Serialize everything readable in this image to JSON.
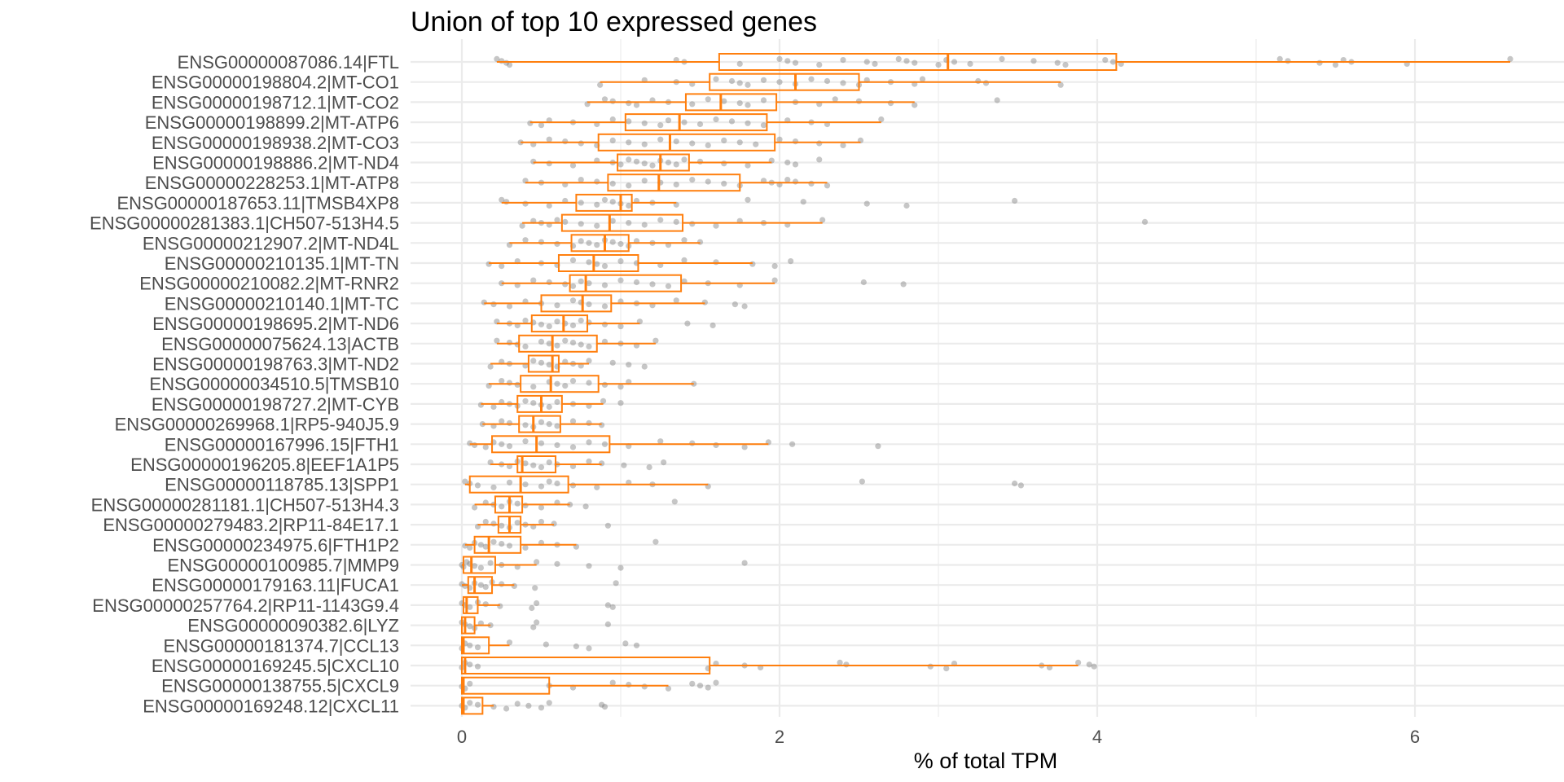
{
  "chart_data": {
    "type": "boxplot",
    "orientation": "horizontal",
    "title": "Union of top 10 expressed genes",
    "xlabel": "% of total TPM",
    "ylabel": "",
    "xlim": [
      -0.3,
      6.9
    ],
    "x_ticks": [
      0,
      2,
      4,
      6
    ],
    "grid": true,
    "legend": "none",
    "colors": {
      "box": "#ff7f0e",
      "points": "#808080",
      "grid": "#ebebeb"
    },
    "genes": [
      {
        "label": "ENSG00000087086.14|FTL",
        "whisker_low": 0.22,
        "q1": 1.62,
        "median": 3.06,
        "q3": 4.12,
        "whisker_high": 6.6,
        "points": [
          0.22,
          0.25,
          0.28,
          0.3,
          1.35,
          1.4,
          1.75,
          2.0,
          2.05,
          2.1,
          2.25,
          2.4,
          2.55,
          2.6,
          2.75,
          2.8,
          2.85,
          3.0,
          3.05,
          3.1,
          3.2,
          3.4,
          3.6,
          3.75,
          3.8,
          4.05,
          4.1,
          4.15,
          5.15,
          5.2,
          5.4,
          5.5,
          5.55,
          5.6,
          5.95,
          6.6
        ]
      },
      {
        "label": "ENSG00000198804.2|MT-CO1",
        "whisker_low": 0.87,
        "q1": 1.56,
        "median": 2.1,
        "q3": 2.5,
        "whisker_high": 3.77,
        "points": [
          0.87,
          1.15,
          1.35,
          1.45,
          1.6,
          1.7,
          1.75,
          1.8,
          1.9,
          2.0,
          2.1,
          2.2,
          2.3,
          2.4,
          2.5,
          2.55,
          2.7,
          2.85,
          2.9,
          3.25,
          3.3,
          3.77
        ]
      },
      {
        "label": "ENSG00000198712.1|MT-CO2",
        "whisker_low": 0.79,
        "q1": 1.41,
        "median": 1.63,
        "q3": 1.98,
        "whisker_high": 2.85,
        "points": [
          0.79,
          0.9,
          0.95,
          1.05,
          1.1,
          1.2,
          1.3,
          1.45,
          1.55,
          1.65,
          1.75,
          1.8,
          1.9,
          2.1,
          2.25,
          2.35,
          2.5,
          2.7,
          2.85,
          3.37
        ]
      },
      {
        "label": "ENSG00000198899.2|MT-ATP6",
        "whisker_low": 0.43,
        "q1": 1.03,
        "median": 1.37,
        "q3": 1.92,
        "whisker_high": 2.64,
        "points": [
          0.43,
          0.5,
          0.55,
          0.7,
          0.85,
          0.95,
          1.05,
          1.15,
          1.25,
          1.3,
          1.4,
          1.5,
          1.6,
          1.7,
          1.8,
          1.9,
          2.05,
          2.2,
          2.3,
          2.64
        ]
      },
      {
        "label": "ENSG00000198938.2|MT-CO3",
        "whisker_low": 0.37,
        "q1": 0.86,
        "median": 1.31,
        "q3": 1.97,
        "whisker_high": 2.51,
        "points": [
          0.37,
          0.45,
          0.55,
          0.65,
          0.75,
          0.85,
          0.95,
          1.05,
          1.15,
          1.25,
          1.35,
          1.45,
          1.55,
          1.65,
          1.75,
          1.85,
          2.0,
          2.1,
          2.25,
          2.4,
          2.51
        ]
      },
      {
        "label": "ENSG00000198886.2|MT-ND4",
        "whisker_low": 0.45,
        "q1": 0.98,
        "median": 1.25,
        "q3": 1.43,
        "whisker_high": 1.95,
        "points": [
          0.45,
          0.55,
          0.7,
          0.85,
          0.95,
          1.0,
          1.05,
          1.1,
          1.15,
          1.2,
          1.25,
          1.3,
          1.35,
          1.4,
          1.5,
          1.65,
          1.8,
          1.95,
          2.05,
          2.1,
          2.25
        ]
      },
      {
        "label": "ENSG00000228253.1|MT-ATP8",
        "whisker_low": 0.4,
        "q1": 0.92,
        "median": 1.24,
        "q3": 1.75,
        "whisker_high": 2.3,
        "points": [
          0.4,
          0.5,
          0.65,
          0.75,
          0.85,
          0.95,
          1.05,
          1.15,
          1.25,
          1.35,
          1.45,
          1.55,
          1.65,
          1.75,
          1.9,
          1.95,
          2.0,
          2.05,
          2.1,
          2.2,
          2.3
        ]
      },
      {
        "label": "ENSG00000187653.11|TMSB4XP8",
        "whisker_low": 0.25,
        "q1": 0.72,
        "median": 1.0,
        "q3": 1.07,
        "whisker_high": 1.35,
        "points": [
          0.25,
          0.28,
          0.4,
          0.55,
          0.65,
          0.75,
          0.85,
          0.9,
          0.95,
          1.0,
          1.05,
          1.1,
          1.2,
          1.35,
          1.8,
          2.15,
          2.55,
          2.8,
          3.48
        ]
      },
      {
        "label": "ENSG00000281383.1|CH507-513H4.5",
        "whisker_low": 0.38,
        "q1": 0.63,
        "median": 0.93,
        "q3": 1.39,
        "whisker_high": 2.27,
        "points": [
          0.38,
          0.45,
          0.5,
          0.55,
          0.6,
          0.65,
          0.75,
          0.85,
          0.95,
          1.05,
          1.15,
          1.25,
          1.35,
          1.45,
          1.6,
          1.75,
          1.9,
          2.05,
          2.27,
          4.3
        ]
      },
      {
        "label": "ENSG00000212907.2|MT-ND4L",
        "whisker_low": 0.3,
        "q1": 0.69,
        "median": 0.9,
        "q3": 1.05,
        "whisker_high": 1.5,
        "points": [
          0.3,
          0.4,
          0.5,
          0.6,
          0.7,
          0.75,
          0.8,
          0.85,
          0.9,
          0.95,
          1.0,
          1.05,
          1.1,
          1.2,
          1.3,
          1.4,
          1.5
        ]
      },
      {
        "label": "ENSG00000210135.1|MT-TN",
        "whisker_low": 0.17,
        "q1": 0.61,
        "median": 0.83,
        "q3": 1.11,
        "whisker_high": 1.83,
        "points": [
          0.17,
          0.25,
          0.35,
          0.5,
          0.6,
          0.7,
          0.8,
          0.85,
          0.9,
          1.0,
          1.1,
          1.25,
          1.4,
          1.6,
          1.83,
          1.97,
          2.07
        ]
      },
      {
        "label": "ENSG00000210082.2|MT-RNR2",
        "whisker_low": 0.25,
        "q1": 0.68,
        "median": 0.78,
        "q3": 1.38,
        "whisker_high": 1.97,
        "points": [
          0.25,
          0.35,
          0.45,
          0.55,
          0.65,
          0.7,
          0.75,
          0.8,
          0.9,
          1.0,
          1.1,
          1.2,
          1.3,
          1.4,
          1.55,
          1.75,
          1.97,
          2.53,
          2.78
        ]
      },
      {
        "label": "ENSG00000210140.1|MT-TC",
        "whisker_low": 0.14,
        "q1": 0.5,
        "median": 0.76,
        "q3": 0.94,
        "whisker_high": 1.53,
        "points": [
          0.14,
          0.2,
          0.3,
          0.4,
          0.5,
          0.6,
          0.7,
          0.75,
          0.8,
          0.9,
          1.0,
          1.1,
          1.2,
          1.35,
          1.53,
          1.72,
          1.78
        ]
      },
      {
        "label": "ENSG00000198695.2|MT-ND6",
        "whisker_low": 0.22,
        "q1": 0.44,
        "median": 0.64,
        "q3": 0.79,
        "whisker_high": 1.12,
        "points": [
          0.22,
          0.3,
          0.35,
          0.4,
          0.45,
          0.5,
          0.55,
          0.6,
          0.65,
          0.7,
          0.75,
          0.8,
          0.9,
          1.0,
          1.12,
          1.42,
          1.58
        ]
      },
      {
        "label": "ENSG00000075624.13|ACTB",
        "whisker_low": 0.22,
        "q1": 0.36,
        "median": 0.57,
        "q3": 0.85,
        "whisker_high": 1.22,
        "points": [
          0.22,
          0.3,
          0.35,
          0.4,
          0.5,
          0.55,
          0.6,
          0.65,
          0.7,
          0.75,
          0.8,
          0.9,
          1.0,
          1.1,
          1.22
        ]
      },
      {
        "label": "ENSG00000198763.3|MT-ND2",
        "whisker_low": 0.18,
        "q1": 0.42,
        "median": 0.57,
        "q3": 0.61,
        "whisker_high": 0.8,
        "points": [
          0.18,
          0.25,
          0.3,
          0.4,
          0.45,
          0.5,
          0.55,
          0.6,
          0.65,
          0.7,
          0.75,
          0.8,
          0.95,
          1.05,
          1.15
        ]
      },
      {
        "label": "ENSG00000034510.5|TMSB10",
        "whisker_low": 0.17,
        "q1": 0.37,
        "median": 0.56,
        "q3": 0.86,
        "whisker_high": 1.46,
        "points": [
          0.17,
          0.25,
          0.3,
          0.35,
          0.45,
          0.55,
          0.6,
          0.65,
          0.7,
          0.8,
          0.9,
          1.0,
          1.05,
          1.46
        ]
      },
      {
        "label": "ENSG00000198727.2|MT-CYB",
        "whisker_low": 0.12,
        "q1": 0.35,
        "median": 0.5,
        "q3": 0.63,
        "whisker_high": 0.89,
        "points": [
          0.12,
          0.2,
          0.25,
          0.3,
          0.35,
          0.4,
          0.45,
          0.5,
          0.55,
          0.6,
          0.7,
          0.8,
          0.89,
          1.0
        ]
      },
      {
        "label": "ENSG00000269968.1|RP5-940J5.9",
        "whisker_low": 0.13,
        "q1": 0.36,
        "median": 0.45,
        "q3": 0.62,
        "whisker_high": 0.88,
        "points": [
          0.13,
          0.2,
          0.25,
          0.3,
          0.4,
          0.45,
          0.5,
          0.55,
          0.6,
          0.7,
          0.8,
          0.88
        ]
      },
      {
        "label": "ENSG00000167996.15|FTH1",
        "whisker_low": 0.05,
        "q1": 0.19,
        "median": 0.47,
        "q3": 0.93,
        "whisker_high": 1.93,
        "points": [
          0.05,
          0.08,
          0.15,
          0.2,
          0.25,
          0.3,
          0.4,
          0.5,
          0.6,
          0.7,
          0.8,
          0.9,
          1.05,
          1.25,
          1.45,
          1.6,
          1.78,
          1.93,
          2.08,
          2.62
        ]
      },
      {
        "label": "ENSG00000196205.8|EEF1A1P5",
        "whisker_low": 0.18,
        "q1": 0.35,
        "median": 0.38,
        "q3": 0.59,
        "whisker_high": 0.88,
        "points": [
          0.18,
          0.25,
          0.3,
          0.35,
          0.4,
          0.45,
          0.5,
          0.55,
          0.6,
          0.7,
          0.8,
          0.88,
          1.02,
          1.18,
          1.27
        ]
      },
      {
        "label": "ENSG00000118785.13|SPP1",
        "whisker_low": 0.02,
        "q1": 0.05,
        "median": 0.37,
        "q3": 0.67,
        "whisker_high": 1.55,
        "points": [
          0.02,
          0.05,
          0.1,
          0.2,
          0.3,
          0.4,
          0.5,
          0.55,
          0.6,
          0.7,
          0.85,
          1.05,
          1.2,
          1.55,
          2.52,
          3.48,
          3.52
        ]
      },
      {
        "label": "ENSG00000281181.1|CH507-513H4.3",
        "whisker_low": 0.08,
        "q1": 0.21,
        "median": 0.3,
        "q3": 0.38,
        "whisker_high": 0.68,
        "points": [
          0.08,
          0.15,
          0.2,
          0.25,
          0.3,
          0.35,
          0.4,
          0.5,
          0.6,
          0.68,
          0.78,
          1.34
        ]
      },
      {
        "label": "ENSG00000279483.2|RP11-84E17.1",
        "whisker_low": 0.1,
        "q1": 0.23,
        "median": 0.3,
        "q3": 0.37,
        "whisker_high": 0.58,
        "points": [
          0.1,
          0.15,
          0.2,
          0.25,
          0.3,
          0.35,
          0.4,
          0.45,
          0.5,
          0.58,
          0.92
        ]
      },
      {
        "label": "ENSG00000234975.6|FTH1P2",
        "whisker_low": 0.02,
        "q1": 0.08,
        "median": 0.17,
        "q3": 0.37,
        "whisker_high": 0.72,
        "points": [
          0.02,
          0.05,
          0.08,
          0.12,
          0.15,
          0.2,
          0.25,
          0.3,
          0.4,
          0.5,
          0.6,
          0.72,
          1.22
        ]
      },
      {
        "label": "ENSG00000100985.7|MMP9",
        "whisker_low": 0.0,
        "q1": 0.01,
        "median": 0.06,
        "q3": 0.21,
        "whisker_high": 0.47,
        "points": [
          0.0,
          0.01,
          0.03,
          0.05,
          0.08,
          0.12,
          0.18,
          0.25,
          0.35,
          0.47,
          0.6,
          0.8,
          1.0,
          1.78
        ]
      },
      {
        "label": "ENSG00000179163.11|FUCA1",
        "whisker_low": 0.0,
        "q1": 0.04,
        "median": 0.08,
        "q3": 0.19,
        "whisker_high": 0.33,
        "points": [
          0.0,
          0.02,
          0.05,
          0.08,
          0.12,
          0.15,
          0.19,
          0.25,
          0.33,
          0.46,
          0.97
        ]
      },
      {
        "label": "ENSG00000257764.2|RP11-1143G9.4",
        "whisker_low": 0.0,
        "q1": 0.01,
        "median": 0.03,
        "q3": 0.1,
        "whisker_high": 0.24,
        "points": [
          0.0,
          0.02,
          0.05,
          0.1,
          0.15,
          0.24,
          0.44,
          0.47,
          0.92,
          0.95
        ]
      },
      {
        "label": "ENSG00000090382.6|LYZ",
        "whisker_low": 0.0,
        "q1": 0.0,
        "median": 0.02,
        "q3": 0.08,
        "whisker_high": 0.18,
        "points": [
          0.0,
          0.02,
          0.05,
          0.08,
          0.12,
          0.18,
          0.45,
          0.47,
          0.92
        ]
      },
      {
        "label": "ENSG00000181374.7|CCL13",
        "whisker_low": 0.0,
        "q1": 0.0,
        "median": 0.01,
        "q3": 0.17,
        "whisker_high": 0.3,
        "points": [
          0.0,
          0.02,
          0.05,
          0.1,
          0.3,
          0.53,
          0.72,
          0.8,
          1.03,
          1.1
        ]
      },
      {
        "label": "ENSG00000169245.5|CXCL10",
        "whisker_low": 0.0,
        "q1": 0.0,
        "median": 0.02,
        "q3": 1.56,
        "whisker_high": 3.88,
        "points": [
          0.0,
          0.02,
          0.05,
          0.1,
          1.55,
          1.6,
          1.78,
          1.88,
          2.38,
          2.42,
          2.95,
          3.05,
          3.1,
          3.65,
          3.7,
          3.88,
          3.95,
          3.98
        ]
      },
      {
        "label": "ENSG00000138755.5|CXCL9",
        "whisker_low": 0.0,
        "q1": 0.0,
        "median": 0.01,
        "q3": 0.55,
        "whisker_high": 1.3,
        "points": [
          0.0,
          0.02,
          0.05,
          0.55,
          0.7,
          0.95,
          1.05,
          1.15,
          1.3,
          1.45,
          1.5,
          1.55,
          1.6
        ]
      },
      {
        "label": "ENSG00000169248.12|CXCL11",
        "whisker_low": 0.0,
        "q1": 0.0,
        "median": 0.01,
        "q3": 0.13,
        "whisker_high": 0.2,
        "points": [
          0.0,
          0.02,
          0.05,
          0.1,
          0.2,
          0.28,
          0.35,
          0.42,
          0.5,
          0.55,
          0.88,
          0.9
        ]
      }
    ]
  }
}
